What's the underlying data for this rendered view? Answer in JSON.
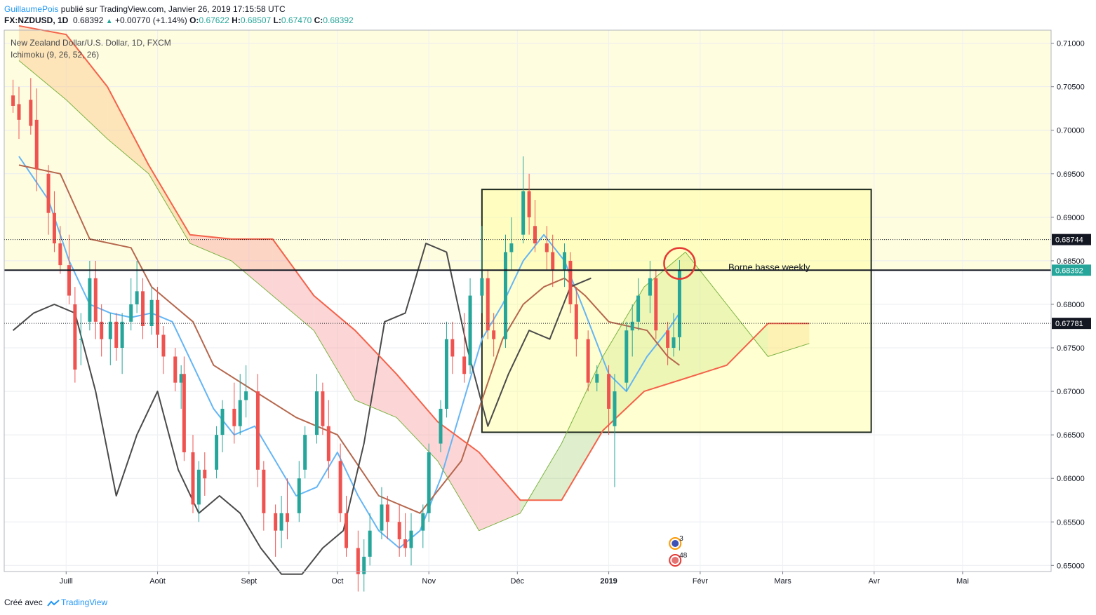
{
  "header": {
    "author": "GuillaumePois",
    "published_text": "publié sur TradingView.com, Janvier 26, 2019 17:15:58 UTC",
    "symbol": "FX:NZDUSD, 1D",
    "last": "0.68392",
    "change": "+0.00770 (+1.14%)",
    "open_label": "O:",
    "open": "0.67622",
    "high_label": "H:",
    "high": "0.68507",
    "low_label": "L:",
    "low": "0.67470",
    "close_label": "C:",
    "close": "0.68392"
  },
  "legend": {
    "title": "New Zealand Dollar/U.S. Dollar, 1D, FXCM",
    "indicator": "Ichimoku (9, 26, 52, 26)"
  },
  "footer": {
    "created_with": "Créé avec",
    "brand": "TradingView"
  },
  "colors": {
    "up": "#26a69a",
    "down": "#ef5350",
    "tenkan": "#64b5f6",
    "kijun": "#b5674d",
    "chikou": "#4a4a4a",
    "senkou_a": "#7cb342",
    "senkou_b": "#f4624a",
    "cloud_bull": "#8bc34a",
    "cloud_bear": "#f8a5a5",
    "cloud_orange": "#fbc78a",
    "zone_fill": "#ffff9a",
    "accent": "#2196f3"
  },
  "chart_data": {
    "type": "candlestick",
    "title": "New Zealand Dollar/U.S. Dollar, 1D, FXCM",
    "price_range": [
      0.6493,
      0.7115
    ],
    "y_ticks": [
      "0.71000",
      "0.70500",
      "0.70000",
      "0.69500",
      "0.69000",
      "0.68500",
      "0.68000",
      "0.67500",
      "0.67000",
      "0.66500",
      "0.66000",
      "0.65500",
      "0.65000"
    ],
    "x_ticks": [
      "Juill",
      "Août",
      "Sept",
      "Oct",
      "Nov",
      "Déc",
      "2019",
      "Févr",
      "Mars",
      "Avr",
      "Mai"
    ],
    "price_labels": [
      "0.68744",
      "0.68392",
      "0.67781"
    ],
    "last_price": 0.68392,
    "levels": [
      {
        "price": 0.68744,
        "style": "dotted"
      },
      {
        "price": 0.68392,
        "style": "solid"
      },
      {
        "price": 0.67781,
        "style": "dotted"
      }
    ],
    "annotation": {
      "text": "Borne basse weekly",
      "price": 0.684
    },
    "zone": {
      "top": 0.6932,
      "bottom": 0.6653,
      "start_date": "2018-11-19",
      "end_date": "2019-03-31"
    },
    "highlight_circle": {
      "date": "2019-01-25",
      "price": 0.6847
    },
    "background_band": {
      "top": 0.7115,
      "bottom": 0.684
    },
    "event_markers": [
      {
        "label": "3",
        "date": "2019-01-24"
      },
      {
        "label": "48",
        "date": "2019-01-24"
      }
    ],
    "candles": [
      [
        "2018-06-13",
        0.704,
        0.7058,
        0.702,
        0.7028
      ],
      [
        "2018-06-15",
        0.703,
        0.705,
        0.699,
        0.7012
      ],
      [
        "2018-06-19",
        0.7035,
        0.706,
        0.6995,
        0.7005
      ],
      [
        "2018-06-21",
        0.7012,
        0.7048,
        0.693,
        0.6955
      ],
      [
        "2018-06-25",
        0.695,
        0.696,
        0.688,
        0.6905
      ],
      [
        "2018-06-27",
        0.6905,
        0.693,
        0.686,
        0.687
      ],
      [
        "2018-06-29",
        0.687,
        0.689,
        0.6835,
        0.6845
      ],
      [
        "2018-07-02",
        0.6845,
        0.688,
        0.68,
        0.681
      ],
      [
        "2018-07-04",
        0.68,
        0.682,
        0.671,
        0.6725
      ],
      [
        "2018-07-06",
        0.676,
        0.679,
        0.673,
        0.676
      ],
      [
        "2018-07-09",
        0.678,
        0.685,
        0.677,
        0.683
      ],
      [
        "2018-07-11",
        0.683,
        0.685,
        0.676,
        0.678
      ],
      [
        "2018-07-13",
        0.678,
        0.68,
        0.674,
        0.676
      ],
      [
        "2018-07-16",
        0.676,
        0.679,
        0.673,
        0.678
      ],
      [
        "2018-07-18",
        0.678,
        0.679,
        0.6735,
        0.675
      ],
      [
        "2018-07-20",
        0.675,
        0.679,
        0.672,
        0.678
      ],
      [
        "2018-07-23",
        0.678,
        0.683,
        0.677,
        0.68
      ],
      [
        "2018-07-25",
        0.68,
        0.685,
        0.679,
        0.6815
      ],
      [
        "2018-07-27",
        0.6815,
        0.683,
        0.676,
        0.6775
      ],
      [
        "2018-07-30",
        0.6775,
        0.682,
        0.6765,
        0.6805
      ],
      [
        "2018-08-01",
        0.6805,
        0.682,
        0.675,
        0.6765
      ],
      [
        "2018-08-03",
        0.6765,
        0.6775,
        0.672,
        0.674
      ],
      [
        "2018-08-07",
        0.674,
        0.675,
        0.67,
        0.671
      ],
      [
        "2018-08-09",
        0.671,
        0.673,
        0.668,
        0.672
      ],
      [
        "2018-08-10",
        0.672,
        0.674,
        0.662,
        0.663
      ],
      [
        "2018-08-13",
        0.663,
        0.665,
        0.656,
        0.657
      ],
      [
        "2018-08-15",
        0.657,
        0.662,
        0.655,
        0.661
      ],
      [
        "2018-08-17",
        0.661,
        0.663,
        0.658,
        0.66
      ],
      [
        "2018-08-21",
        0.661,
        0.666,
        0.66,
        0.665
      ],
      [
        "2018-08-23",
        0.665,
        0.669,
        0.663,
        0.668
      ],
      [
        "2018-08-27",
        0.668,
        0.671,
        0.664,
        0.666
      ],
      [
        "2018-08-29",
        0.666,
        0.672,
        0.665,
        0.669
      ],
      [
        "2018-08-31",
        0.669,
        0.673,
        0.667,
        0.67
      ],
      [
        "2018-09-04",
        0.67,
        0.672,
        0.659,
        0.661
      ],
      [
        "2018-09-06",
        0.661,
        0.662,
        0.654,
        0.656
      ],
      [
        "2018-09-10",
        0.656,
        0.657,
        0.651,
        0.654
      ],
      [
        "2018-09-12",
        0.654,
        0.658,
        0.652,
        0.656
      ],
      [
        "2018-09-14",
        0.656,
        0.66,
        0.653,
        0.655
      ],
      [
        "2018-09-18",
        0.656,
        0.662,
        0.655,
        0.66
      ],
      [
        "2018-09-20",
        0.661,
        0.666,
        0.66,
        0.665
      ],
      [
        "2018-09-24",
        0.665,
        0.672,
        0.664,
        0.67
      ],
      [
        "2018-09-26",
        0.67,
        0.671,
        0.665,
        0.666
      ],
      [
        "2018-09-28",
        0.666,
        0.669,
        0.66,
        0.662
      ],
      [
        "2018-10-02",
        0.662,
        0.664,
        0.655,
        0.656
      ],
      [
        "2018-10-04",
        0.656,
        0.658,
        0.651,
        0.652
      ],
      [
        "2018-10-08",
        0.652,
        0.654,
        0.647,
        0.649
      ],
      [
        "2018-10-10",
        0.649,
        0.653,
        0.647,
        0.651
      ],
      [
        "2018-10-12",
        0.651,
        0.656,
        0.65,
        0.654
      ],
      [
        "2018-10-16",
        0.654,
        0.659,
        0.653,
        0.657
      ],
      [
        "2018-10-18",
        0.657,
        0.658,
        0.653,
        0.655
      ],
      [
        "2018-10-22",
        0.655,
        0.657,
        0.651,
        0.653
      ],
      [
        "2018-10-24",
        0.653,
        0.656,
        0.651,
        0.652
      ],
      [
        "2018-10-26",
        0.652,
        0.656,
        0.65,
        0.654
      ],
      [
        "2018-10-30",
        0.654,
        0.657,
        0.652,
        0.656
      ],
      [
        "2018-11-01",
        0.656,
        0.664,
        0.655,
        0.663
      ],
      [
        "2018-11-05",
        0.664,
        0.669,
        0.663,
        0.668
      ],
      [
        "2018-11-07",
        0.668,
        0.678,
        0.667,
        0.676
      ],
      [
        "2018-11-09",
        0.676,
        0.678,
        0.672,
        0.674
      ],
      [
        "2018-11-13",
        0.674,
        0.679,
        0.671,
        0.672
      ],
      [
        "2018-11-15",
        0.673,
        0.683,
        0.672,
        0.681
      ],
      [
        "2018-11-19",
        0.681,
        0.689,
        0.679,
        0.683
      ],
      [
        "2018-11-21",
        0.683,
        0.684,
        0.676,
        0.677
      ],
      [
        "2018-11-23",
        0.677,
        0.679,
        0.674,
        0.676
      ],
      [
        "2018-11-27",
        0.676,
        0.688,
        0.675,
        0.686
      ],
      [
        "2018-11-29",
        0.686,
        0.69,
        0.684,
        0.687
      ],
      [
        "2018-12-03",
        0.688,
        0.697,
        0.687,
        0.693
      ],
      [
        "2018-12-05",
        0.693,
        0.695,
        0.688,
        0.69
      ],
      [
        "2018-12-07",
        0.689,
        0.692,
        0.686,
        0.687
      ],
      [
        "2018-12-11",
        0.687,
        0.689,
        0.684,
        0.686
      ],
      [
        "2018-12-13",
        0.686,
        0.688,
        0.682,
        0.684
      ],
      [
        "2018-12-17",
        0.684,
        0.687,
        0.682,
        0.686
      ],
      [
        "2018-12-19",
        0.685,
        0.686,
        0.679,
        0.68
      ],
      [
        "2018-12-21",
        0.68,
        0.682,
        0.674,
        0.676
      ],
      [
        "2018-12-25",
        0.676,
        0.677,
        0.67,
        0.671
      ],
      [
        "2018-12-28",
        0.671,
        0.673,
        0.67,
        0.672
      ],
      [
        "2019-01-01",
        0.672,
        0.673,
        0.665,
        0.668
      ],
      [
        "2019-01-03",
        0.666,
        0.672,
        0.659,
        0.67
      ],
      [
        "2019-01-07",
        0.671,
        0.678,
        0.67,
        0.677
      ],
      [
        "2019-01-09",
        0.677,
        0.68,
        0.674,
        0.678
      ],
      [
        "2019-01-11",
        0.678,
        0.683,
        0.677,
        0.681
      ],
      [
        "2019-01-15",
        0.681,
        0.685,
        0.679,
        0.683
      ],
      [
        "2019-01-17",
        0.683,
        0.684,
        0.676,
        0.677
      ],
      [
        "2019-01-21",
        0.677,
        0.678,
        0.673,
        0.675
      ],
      [
        "2019-01-23",
        0.675,
        0.679,
        0.674,
        0.6762
      ],
      [
        "2019-01-25",
        0.67622,
        0.68507,
        0.6747,
        0.68392
      ]
    ],
    "series": [
      {
        "name": "Tenkan",
        "points": [
          [
            "2018-06-15",
            0.697
          ],
          [
            "2018-06-25",
            0.692
          ],
          [
            "2018-07-02",
            0.685
          ],
          [
            "2018-07-09",
            0.68
          ],
          [
            "2018-07-16",
            0.679
          ],
          [
            "2018-07-23",
            0.6785
          ],
          [
            "2018-07-30",
            0.679
          ],
          [
            "2018-08-06",
            0.678
          ],
          [
            "2018-08-13",
            0.673
          ],
          [
            "2018-08-20",
            0.668
          ],
          [
            "2018-08-27",
            0.665
          ],
          [
            "2018-09-03",
            0.666
          ],
          [
            "2018-09-10",
            0.662
          ],
          [
            "2018-09-17",
            0.658
          ],
          [
            "2018-09-24",
            0.659
          ],
          [
            "2018-10-01",
            0.663
          ],
          [
            "2018-10-08",
            0.658
          ],
          [
            "2018-10-15",
            0.654
          ],
          [
            "2018-10-22",
            0.652
          ],
          [
            "2018-10-29",
            0.654
          ],
          [
            "2018-11-05",
            0.66
          ],
          [
            "2018-11-12",
            0.668
          ],
          [
            "2018-11-19",
            0.676
          ],
          [
            "2018-11-26",
            0.68
          ],
          [
            "2018-12-03",
            0.685
          ],
          [
            "2018-12-10",
            0.688
          ],
          [
            "2018-12-17",
            0.685
          ],
          [
            "2018-12-24",
            0.679
          ],
          [
            "2019-01-01",
            0.672
          ],
          [
            "2019-01-07",
            0.67
          ],
          [
            "2019-01-14",
            0.674
          ],
          [
            "2019-01-21",
            0.677
          ],
          [
            "2019-01-25",
            0.679
          ]
        ]
      },
      {
        "name": "Kijun",
        "points": [
          [
            "2018-06-15",
            0.696
          ],
          [
            "2018-06-29",
            0.695
          ],
          [
            "2018-07-09",
            0.6875
          ],
          [
            "2018-07-23",
            0.6865
          ],
          [
            "2018-07-30",
            0.682
          ],
          [
            "2018-08-13",
            0.678
          ],
          [
            "2018-08-20",
            0.673
          ],
          [
            "2018-09-03",
            0.67
          ],
          [
            "2018-09-17",
            0.667
          ],
          [
            "2018-10-01",
            0.665
          ],
          [
            "2018-10-15",
            0.658
          ],
          [
            "2018-10-29",
            0.656
          ],
          [
            "2018-11-12",
            0.662
          ],
          [
            "2018-11-19",
            0.669
          ],
          [
            "2018-11-26",
            0.676
          ],
          [
            "2018-12-03",
            0.68
          ],
          [
            "2018-12-10",
            0.682
          ],
          [
            "2018-12-17",
            0.683
          ],
          [
            "2018-12-24",
            0.681
          ],
          [
            "2019-01-01",
            0.678
          ],
          [
            "2019-01-14",
            0.677
          ],
          [
            "2019-01-21",
            0.674
          ],
          [
            "2019-01-25",
            0.673
          ]
        ]
      },
      {
        "name": "Chikou",
        "points": [
          [
            "2018-06-13",
            0.677
          ],
          [
            "2018-06-20",
            0.679
          ],
          [
            "2018-06-27",
            0.68
          ],
          [
            "2018-07-04",
            0.679
          ],
          [
            "2018-07-11",
            0.67
          ],
          [
            "2018-07-18",
            0.658
          ],
          [
            "2018-07-25",
            0.665
          ],
          [
            "2018-08-01",
            0.67
          ],
          [
            "2018-08-08",
            0.661
          ],
          [
            "2018-08-15",
            0.656
          ],
          [
            "2018-08-22",
            0.658
          ],
          [
            "2018-08-29",
            0.656
          ],
          [
            "2018-09-05",
            0.652
          ],
          [
            "2018-09-12",
            0.649
          ],
          [
            "2018-09-19",
            0.649
          ],
          [
            "2018-09-26",
            0.652
          ],
          [
            "2018-10-03",
            0.654
          ],
          [
            "2018-10-10",
            0.664
          ],
          [
            "2018-10-17",
            0.678
          ],
          [
            "2018-10-24",
            0.679
          ],
          [
            "2018-10-31",
            0.687
          ],
          [
            "2018-11-07",
            0.686
          ],
          [
            "2018-11-14",
            0.675
          ],
          [
            "2018-11-21",
            0.666
          ],
          [
            "2018-11-28",
            0.672
          ],
          [
            "2018-12-05",
            0.677
          ],
          [
            "2018-12-12",
            0.676
          ],
          [
            "2018-12-19",
            0.682
          ],
          [
            "2018-12-26",
            0.683
          ]
        ]
      },
      {
        "name": "Senkou A",
        "points": [
          [
            "2018-06-15",
            0.708
          ],
          [
            "2018-07-01",
            0.7035
          ],
          [
            "2018-07-15",
            0.699
          ],
          [
            "2018-07-29",
            0.695
          ],
          [
            "2018-08-12",
            0.687
          ],
          [
            "2018-08-26",
            0.685
          ],
          [
            "2018-09-09",
            0.681
          ],
          [
            "2018-09-23",
            0.677
          ],
          [
            "2018-10-07",
            0.669
          ],
          [
            "2018-10-21",
            0.667
          ],
          [
            "2018-11-04",
            0.662
          ],
          [
            "2018-11-18",
            0.654
          ],
          [
            "2018-12-02",
            0.656
          ],
          [
            "2018-12-16",
            0.664
          ],
          [
            "2018-12-30",
            0.674
          ],
          [
            "2019-01-13",
            0.682
          ],
          [
            "2019-01-27",
            0.686
          ],
          [
            "2019-02-10",
            0.68
          ],
          [
            "2019-02-24",
            0.674
          ],
          [
            "2019-03-10",
            0.6755
          ]
        ]
      },
      {
        "name": "Senkou B",
        "points": [
          [
            "2018-06-15",
            0.712
          ],
          [
            "2018-07-01",
            0.711
          ],
          [
            "2018-07-15",
            0.705
          ],
          [
            "2018-07-29",
            0.696
          ],
          [
            "2018-08-12",
            0.688
          ],
          [
            "2018-08-26",
            0.6875
          ],
          [
            "2018-09-09",
            0.6875
          ],
          [
            "2018-09-23",
            0.681
          ],
          [
            "2018-10-07",
            0.677
          ],
          [
            "2018-10-21",
            0.672
          ],
          [
            "2018-11-04",
            0.6665
          ],
          [
            "2018-11-18",
            0.663
          ],
          [
            "2018-12-02",
            0.6575
          ],
          [
            "2018-12-16",
            0.6575
          ],
          [
            "2018-12-30",
            0.6655
          ],
          [
            "2019-01-13",
            0.67
          ],
          [
            "2019-01-27",
            0.6715
          ],
          [
            "2019-02-10",
            0.673
          ],
          [
            "2019-02-24",
            0.6778
          ],
          [
            "2019-03-10",
            0.6778
          ]
        ]
      }
    ]
  }
}
